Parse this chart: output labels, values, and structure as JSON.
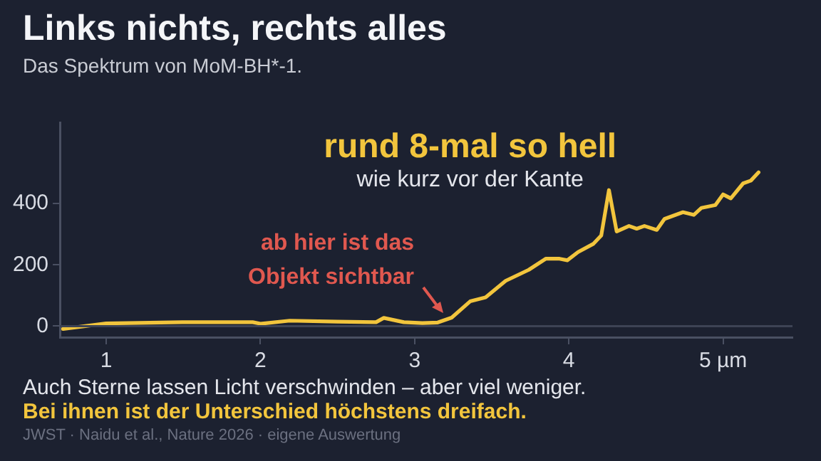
{
  "chart_data": {
    "type": "line",
    "title": "Links nichts, rechts alles",
    "subtitle": "Das Spektrum von MoM-BH*-1.",
    "x": [
      0.72,
      1.0,
      1.5,
      1.95,
      2.0,
      2.19,
      2.5,
      2.75,
      2.8,
      2.93,
      3.05,
      3.15,
      3.24,
      3.36,
      3.46,
      3.59,
      3.74,
      3.85,
      3.94,
      3.99,
      4.06,
      4.16,
      4.21,
      4.26,
      4.31,
      4.39,
      4.44,
      4.49,
      4.57,
      4.62,
      4.74,
      4.81,
      4.86,
      4.95,
      5.0,
      5.05,
      5.13,
      5.18,
      5.23
    ],
    "series": [
      {
        "color": "#f2c53d",
        "values": [
          -9,
          9,
          13,
          13,
          8,
          18,
          15,
          13,
          27,
          13,
          10,
          12,
          28,
          81,
          94,
          148,
          184,
          220,
          220,
          215,
          242,
          269,
          296,
          444,
          309,
          327,
          318,
          327,
          314,
          350,
          372,
          363,
          386,
          395,
          430,
          417,
          466,
          475,
          502
        ]
      }
    ],
    "xlim": [
      0.7,
      5.45
    ],
    "xticks": [
      1,
      2,
      3,
      4,
      {
        "value": 5,
        "label": "5 µm"
      }
    ],
    "ylim": [
      -36,
      665
    ],
    "yticks": [
      0,
      200,
      400
    ],
    "grid": false,
    "legend": false,
    "marker": "none",
    "line_style": "solid",
    "ref_lines": [
      {
        "axis": "y",
        "value": 0,
        "color": "#3d4354"
      }
    ],
    "annotations": [
      "rund 8-mal so hell",
      "wie kurz vor der Kante",
      {
        "text": "ab hier ist das Objekt sichtbar",
        "x": 3.2,
        "y": 20
      },
      "Auch Sterne lassen Licht verschwinden – aber viel weniger.",
      "Bei ihnen ist der Unterschied höchstens dreifach.",
      "JWST · Naidu et al., Nature 2026 · eigene Auswertung"
    ]
  }
}
